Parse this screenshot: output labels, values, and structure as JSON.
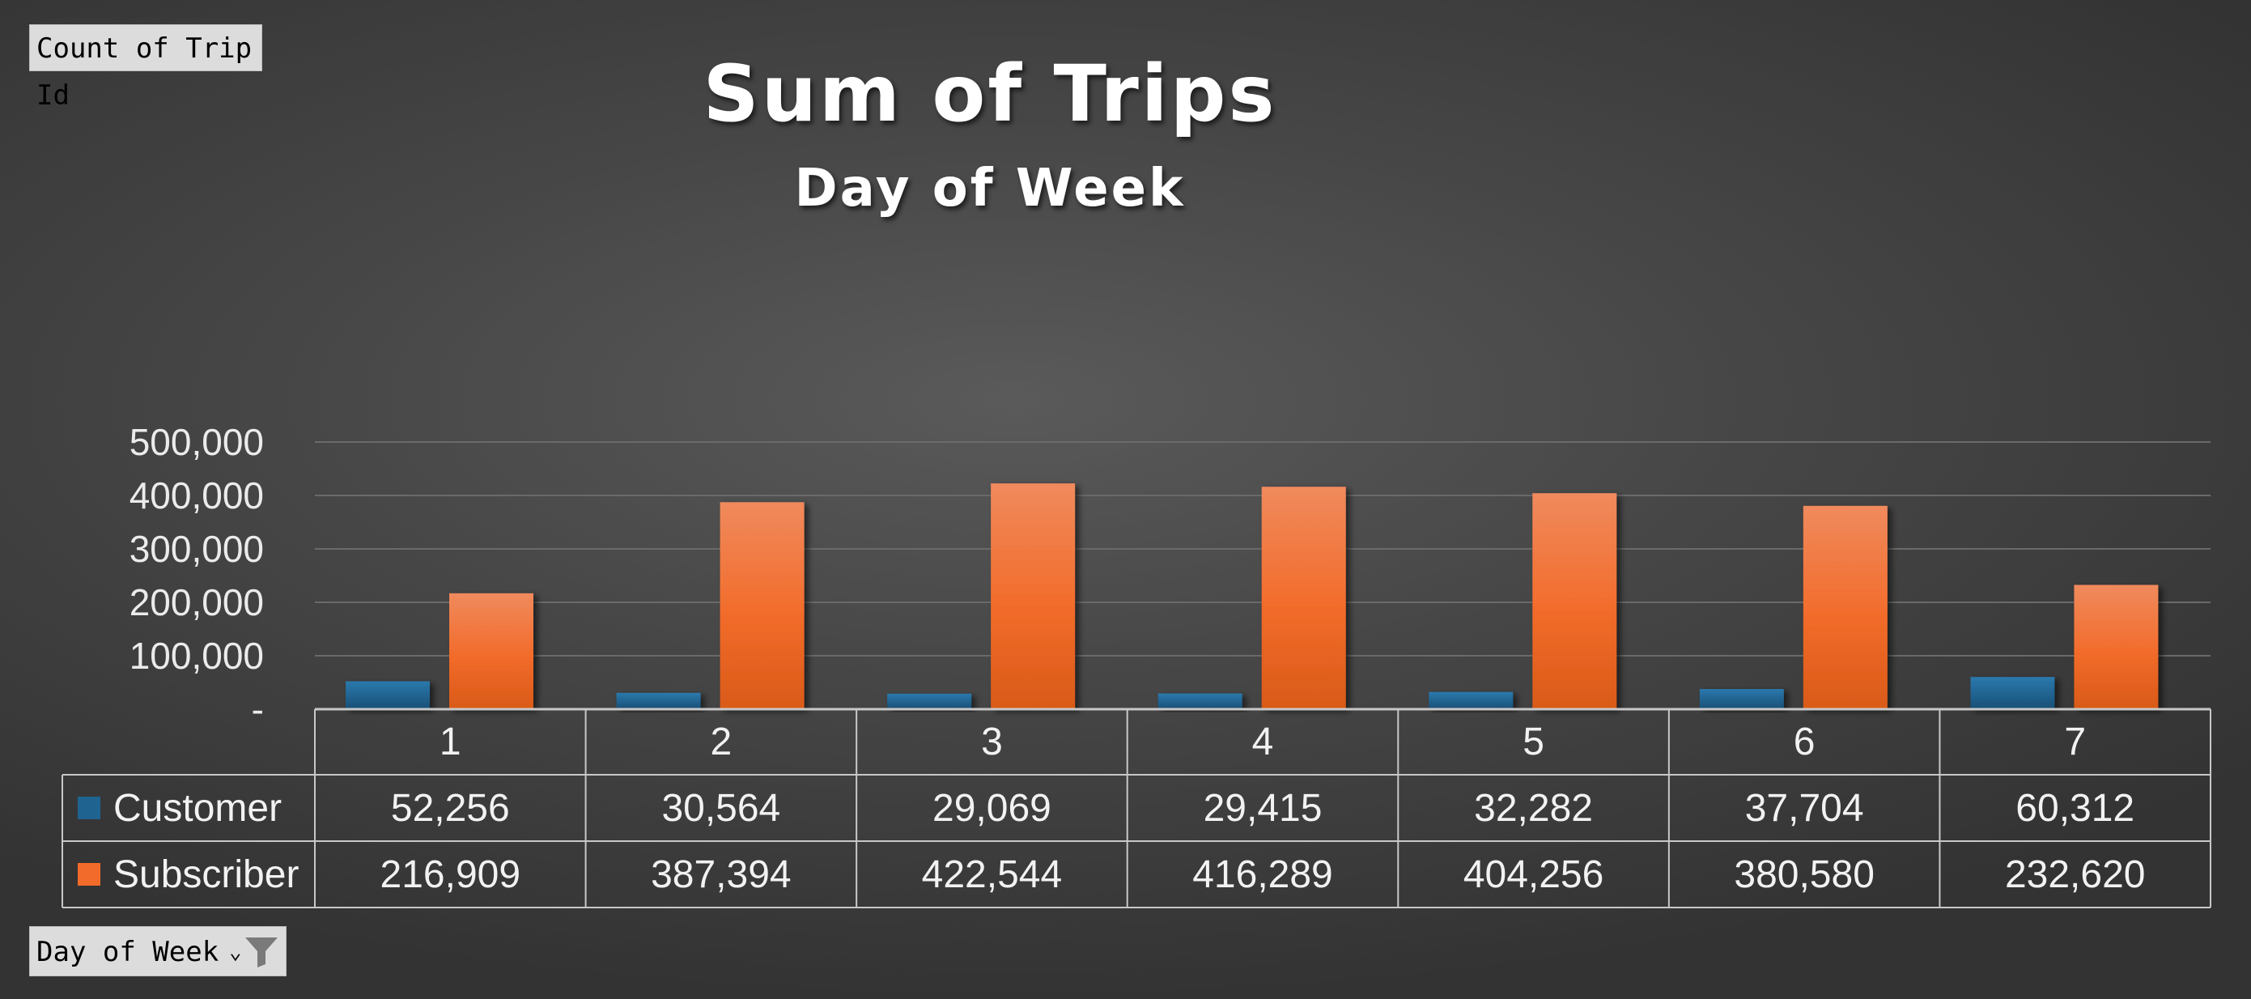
{
  "field_buttons": {
    "values_field": "Count of Trip Id",
    "axis_field": "Day of Week"
  },
  "colors": {
    "customer": "#1f6391",
    "subscriber": "#f26b2a",
    "gridline": "#6a6a6a",
    "table_border": "#c8c8c8"
  },
  "icons": {
    "axis_field_filter": "funnel-icon",
    "axis_field_dropdown": "dropdown-arrow-icon"
  },
  "chart_data": {
    "type": "bar",
    "title": "Sum of Trips",
    "subtitle": "Day of Week",
    "categories": [
      "1",
      "2",
      "3",
      "4",
      "5",
      "6",
      "7"
    ],
    "series": [
      {
        "name": "Customer",
        "values": [
          52256,
          30564,
          29069,
          29415,
          32282,
          37704,
          60312
        ],
        "labels": [
          "52,256",
          "30,564",
          "29,069",
          "29,415",
          "32,282",
          "37,704",
          "60,312"
        ]
      },
      {
        "name": "Subscriber",
        "values": [
          216909,
          387394,
          422544,
          416289,
          404256,
          380580,
          232620
        ],
        "labels": [
          "216,909",
          "387,394",
          "422,544",
          "416,289",
          "404,256",
          "380,580",
          "232,620"
        ]
      }
    ],
    "yticks": [
      0,
      100000,
      200000,
      300000,
      400000,
      500000
    ],
    "ytick_labels": [
      "-",
      "100,000",
      "200,000",
      "300,000",
      "400,000",
      "500,000"
    ],
    "ylim": [
      0,
      500000
    ],
    "grid": true,
    "legend": "data-table"
  }
}
